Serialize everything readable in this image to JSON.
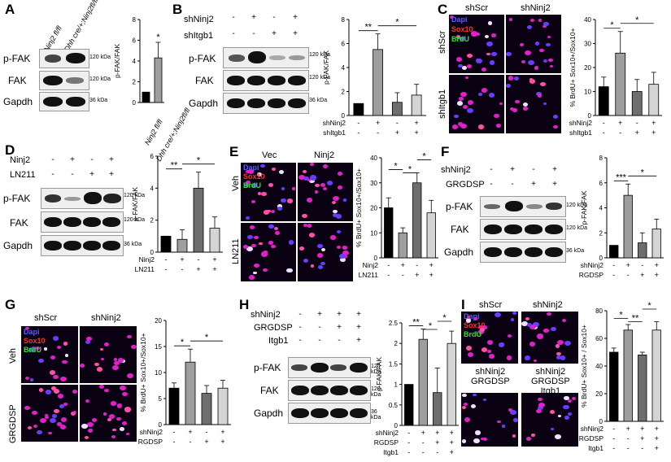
{
  "panels": {
    "A": {
      "letter": "A",
      "lanes": [
        "Ninj2 fl/fl",
        "Dhh cre/+;Ninj2fl/fl"
      ],
      "rows": [
        "p-FAK",
        "FAK",
        "Gapdh"
      ],
      "kda": [
        "120 kDa",
        "120 kDa",
        "36 kDa"
      ]
    },
    "B": {
      "letter": "B",
      "cond": [
        "shNinj2",
        "shItgb1"
      ],
      "signs": [
        [
          "-",
          "+",
          "-",
          "+"
        ],
        [
          "-",
          "-",
          "+",
          "+"
        ]
      ],
      "rows": [
        "p-FAK",
        "FAK",
        "Gapdh"
      ],
      "kda": [
        "120 kDa",
        "120 kDa",
        "36 kDa"
      ]
    },
    "C": {
      "letter": "C",
      "cols": [
        "shScr",
        "shNinj2"
      ],
      "rows": [
        "shScr",
        "shItgb1"
      ],
      "stains": [
        "Dapi",
        "Sox10",
        "BrdU"
      ]
    },
    "D": {
      "letter": "D",
      "cond": [
        "Ninj2",
        "LN211"
      ],
      "signs": [
        [
          "-",
          "+",
          "-",
          "+"
        ],
        [
          "-",
          "-",
          "+",
          "+"
        ]
      ],
      "rows": [
        "p-FAK",
        "FAK",
        "Gapdh"
      ],
      "kda": [
        "120 kDa",
        "120 kDa",
        "36 kDa"
      ]
    },
    "E": {
      "letter": "E",
      "cols": [
        "Vec",
        "Ninj2"
      ],
      "rows": [
        "Veh",
        "LN211"
      ],
      "stains": [
        "Dapi",
        "Sox10",
        "BrdU"
      ]
    },
    "F": {
      "letter": "F",
      "cond": [
        "shNinj2",
        "GRGDSP"
      ],
      "signs": [
        [
          "-",
          "+",
          "-",
          "+"
        ],
        [
          "-",
          "-",
          "+",
          "+"
        ]
      ],
      "rows": [
        "p-FAK",
        "FAK",
        "Gapdh"
      ],
      "kda": [
        "120 kDa",
        "120 kDa",
        "36 kDa"
      ]
    },
    "G": {
      "letter": "G",
      "cols": [
        "shScr",
        "shNinj2"
      ],
      "rows": [
        "Veh",
        "GRGDSP"
      ],
      "stains": [
        "Dapi",
        "Sox10",
        "BrdU"
      ]
    },
    "H": {
      "letter": "H",
      "cond": [
        "shNinj2",
        "GRGDSP",
        "Itgb1"
      ],
      "signs": [
        [
          "-",
          "+",
          "+",
          "+"
        ],
        [
          "-",
          "-",
          "+",
          "+"
        ],
        [
          "-",
          "-",
          "-",
          "+"
        ]
      ],
      "rows": [
        "p-FAK",
        "FAK",
        "Gapdh"
      ],
      "kda": [
        "120 kDa",
        "120 kDa",
        "36 kDa"
      ]
    },
    "I": {
      "letter": "I",
      "cols": [
        "shScr",
        "shNinj2"
      ],
      "cols2": [
        "shNinj2\nGRGDSP",
        "shNinj2\nGRGDSP\nItgb1"
      ],
      "stains": [
        "Dapi",
        "Sox10",
        "BrdU"
      ]
    }
  },
  "colors": {
    "dapi": "#3c3cff",
    "sox10": "#ff2020",
    "brdu": "#20e020",
    "bar_black": "#000000",
    "bar_gray1": "#9e9e9e",
    "bar_gray2": "#6e6e6e",
    "bar_gray3": "#d4d4d4"
  },
  "chart_data": [
    {
      "panel": "A",
      "type": "bar",
      "ylabel": "p-FAK/FAK",
      "ylim": [
        0,
        8
      ],
      "yticks": [
        0,
        2,
        4,
        6,
        8
      ],
      "categories": [
        "Ninj2 fl/fl",
        "Dhh cre/+;Ninj2fl/fl"
      ],
      "values": [
        1.0,
        4.3
      ],
      "errors": [
        0,
        1.5
      ],
      "annotations": [
        "*"
      ],
      "colors": [
        "#000000",
        "#9e9e9e"
      ]
    },
    {
      "panel": "B",
      "type": "bar",
      "ylabel": "p-FAK/FAK",
      "ylim": [
        0,
        8
      ],
      "yticks": [
        0,
        2,
        4,
        6,
        8
      ],
      "values": [
        1.0,
        5.5,
        1.1,
        1.7
      ],
      "errors": [
        0,
        1.3,
        0.8,
        0.9
      ],
      "cond": [
        "shNinj2",
        "shItgb1"
      ],
      "signs": [
        [
          "-",
          "+",
          "-",
          "+"
        ],
        [
          "-",
          "-",
          "+",
          "+"
        ]
      ],
      "annotations": [
        "**",
        "*"
      ]
    },
    {
      "panel": "C",
      "type": "bar",
      "ylabel": "% BrdU+ Sox10+/Sox10+",
      "ylim": [
        0,
        40
      ],
      "yticks": [
        0,
        10,
        20,
        30,
        40
      ],
      "values": [
        12,
        26,
        10,
        13
      ],
      "errors": [
        4,
        9,
        5,
        5
      ],
      "cond": [
        "shNinj2",
        "shItgb1"
      ],
      "signs": [
        [
          "-",
          "+",
          "-",
          "+"
        ],
        [
          "-",
          "-",
          "+",
          "+"
        ]
      ],
      "annotations": [
        "*",
        "*"
      ]
    },
    {
      "panel": "D",
      "type": "bar",
      "ylabel": "p-FAK/FAK",
      "ylim": [
        0,
        6
      ],
      "yticks": [
        0,
        2,
        4,
        6
      ],
      "values": [
        1.0,
        0.8,
        4.0,
        1.5
      ],
      "errors": [
        0,
        0.6,
        1.0,
        0.7
      ],
      "cond": [
        "Ninj2",
        "LN211"
      ],
      "signs": [
        [
          "-",
          "+",
          "-",
          "+"
        ],
        [
          "-",
          "-",
          "+",
          "+"
        ]
      ],
      "annotations": [
        "**",
        "*"
      ]
    },
    {
      "panel": "E",
      "type": "bar",
      "ylabel": "% BrdU+ Sox10+/Sox10+",
      "ylim": [
        0,
        40
      ],
      "yticks": [
        0,
        10,
        20,
        30,
        40
      ],
      "values": [
        20,
        10,
        30,
        18
      ],
      "errors": [
        4,
        2,
        4,
        5
      ],
      "cond": [
        "Ninj2",
        "LN211"
      ],
      "signs": [
        [
          "-",
          "+",
          "-",
          "+"
        ],
        [
          "-",
          "-",
          "+",
          "+"
        ]
      ],
      "annotations": [
        "*",
        "*",
        "*"
      ]
    },
    {
      "panel": "F",
      "type": "bar",
      "ylabel": "p-FAK/FAK",
      "ylim": [
        0,
        8
      ],
      "yticks": [
        0,
        2,
        4,
        6,
        8
      ],
      "values": [
        1.0,
        5.0,
        1.2,
        2.3
      ],
      "errors": [
        0,
        0.9,
        0.8,
        0.8
      ],
      "cond": [
        "shNinj2",
        "GRGDSP"
      ],
      "signs": [
        [
          "-",
          "+",
          "-",
          "+"
        ],
        [
          "-",
          "-",
          "+",
          "+"
        ]
      ],
      "annotations": [
        "***",
        "*"
      ]
    },
    {
      "panel": "G",
      "type": "bar",
      "ylabel": "% BrdU+ Sox10+/Sox10+",
      "ylim": [
        0,
        20
      ],
      "yticks": [
        0,
        5,
        10,
        15,
        20
      ],
      "values": [
        7,
        12,
        6,
        7
      ],
      "errors": [
        1,
        2.5,
        1.5,
        1.5
      ],
      "cond": [
        "shNinj2",
        "GRGDSP"
      ],
      "signs": [
        [
          "-",
          "+",
          "-",
          "+"
        ],
        [
          "-",
          "-",
          "+",
          "+"
        ]
      ],
      "annotations": [
        "*",
        "*"
      ]
    },
    {
      "panel": "H",
      "type": "bar",
      "ylabel": "p-FAK/FAK",
      "ylim": [
        0,
        2.5
      ],
      "yticks": [
        0.0,
        0.5,
        1.0,
        1.5,
        2.0,
        2.5
      ],
      "values": [
        1.0,
        2.1,
        0.8,
        2.0
      ],
      "errors": [
        0,
        0.25,
        0.6,
        0.3
      ],
      "cond": [
        "shNinj2",
        "GRGDSP",
        "Itgb1"
      ],
      "signs": [
        [
          "-",
          "+",
          "+",
          "+"
        ],
        [
          "-",
          "-",
          "+",
          "+"
        ],
        [
          "-",
          "-",
          "-",
          "+"
        ]
      ],
      "annotations": [
        "**",
        "*",
        "*"
      ]
    },
    {
      "panel": "I",
      "type": "bar",
      "ylabel": "% BrdU+ Sox10+ / Sox10+",
      "ylim": [
        0,
        80
      ],
      "yticks": [
        0,
        20,
        40,
        60,
        80
      ],
      "values": [
        50,
        66,
        48,
        66
      ],
      "errors": [
        3,
        4,
        2,
        6
      ],
      "cond": [
        "shNinj2",
        "GRGDSP",
        "Itgb1"
      ],
      "signs": [
        [
          "-",
          "+",
          "+",
          "+"
        ],
        [
          "-",
          "-",
          "+",
          "+"
        ],
        [
          "-",
          "-",
          "-",
          "+"
        ]
      ],
      "annotations": [
        "*",
        "**",
        "*"
      ]
    }
  ]
}
